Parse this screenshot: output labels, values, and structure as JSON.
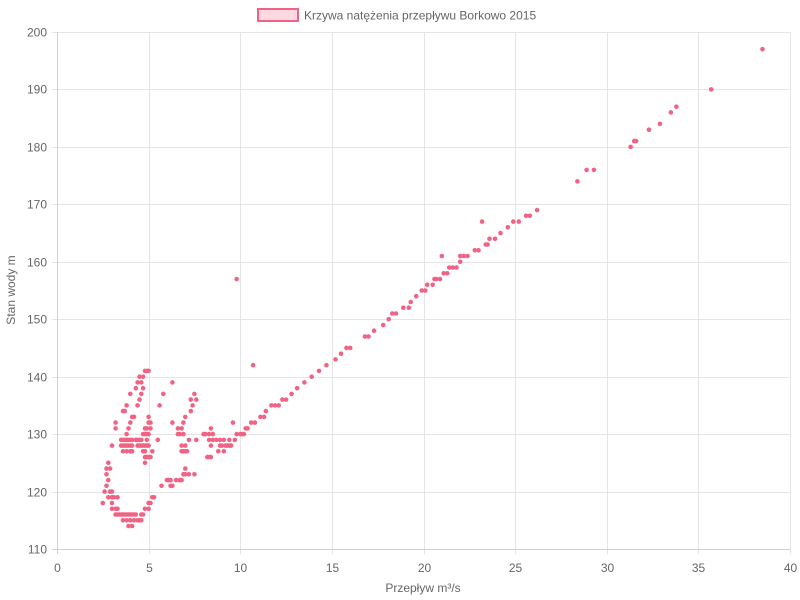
{
  "chart_data": {
    "type": "scatter",
    "legend": {
      "label": "Krzywa natężenia przepływu Borkowo 2015",
      "placement": "top-center"
    },
    "xlabel": "Przepływ m³/s",
    "ylabel": "Stan wody m",
    "xlim": [
      0,
      40
    ],
    "ylim": [
      110,
      200
    ],
    "xticks": [
      0,
      5,
      10,
      15,
      20,
      25,
      30,
      35,
      40
    ],
    "yticks": [
      110,
      120,
      130,
      140,
      150,
      160,
      170,
      180,
      190,
      200
    ],
    "xtick_labels": [
      "0",
      "5",
      "10",
      "15",
      "20",
      "25",
      "30",
      "35",
      "40"
    ],
    "ytick_labels": [
      "110",
      "120",
      "130",
      "140",
      "150",
      "160",
      "170",
      "180",
      "190",
      "200"
    ],
    "grid": true,
    "colors": {
      "point_fill": "#f06384",
      "legend_fill": "#ffd9e1",
      "legend_border": "#f06384"
    },
    "series": [
      {
        "points": [
          [
            2.5,
            118
          ],
          [
            2.6,
            120
          ],
          [
            2.7,
            121
          ],
          [
            2.7,
            123
          ],
          [
            2.7,
            124
          ],
          [
            2.8,
            119
          ],
          [
            2.8,
            122
          ],
          [
            2.8,
            125
          ],
          [
            2.9,
            120
          ],
          [
            2.9,
            124
          ],
          [
            3.0,
            117
          ],
          [
            3.0,
            118
          ],
          [
            3.0,
            119
          ],
          [
            3.0,
            120
          ],
          [
            3.0,
            128
          ],
          [
            3.1,
            119
          ],
          [
            3.2,
            116
          ],
          [
            3.2,
            117
          ],
          [
            3.2,
            131
          ],
          [
            3.2,
            132
          ],
          [
            3.3,
            116
          ],
          [
            3.3,
            117
          ],
          [
            3.3,
            119
          ],
          [
            3.4,
            116
          ],
          [
            3.5,
            116
          ],
          [
            3.5,
            128
          ],
          [
            3.5,
            129
          ],
          [
            3.6,
            115
          ],
          [
            3.6,
            116
          ],
          [
            3.6,
            127
          ],
          [
            3.6,
            128
          ],
          [
            3.6,
            129
          ],
          [
            3.6,
            134
          ],
          [
            3.7,
            116
          ],
          [
            3.7,
            128
          ],
          [
            3.7,
            129
          ],
          [
            3.7,
            134
          ],
          [
            3.8,
            115
          ],
          [
            3.8,
            116
          ],
          [
            3.8,
            127
          ],
          [
            3.8,
            128
          ],
          [
            3.8,
            129
          ],
          [
            3.8,
            130
          ],
          [
            3.8,
            135
          ],
          [
            3.9,
            114
          ],
          [
            3.9,
            116
          ],
          [
            3.9,
            128
          ],
          [
            3.9,
            129
          ],
          [
            3.9,
            131
          ],
          [
            4.0,
            115
          ],
          [
            4.0,
            116
          ],
          [
            4.0,
            127
          ],
          [
            4.0,
            128
          ],
          [
            4.0,
            129
          ],
          [
            4.0,
            132
          ],
          [
            4.0,
            137
          ],
          [
            4.1,
            114
          ],
          [
            4.1,
            116
          ],
          [
            4.1,
            127
          ],
          [
            4.1,
            128
          ],
          [
            4.1,
            129
          ],
          [
            4.1,
            133
          ],
          [
            4.2,
            115
          ],
          [
            4.2,
            116
          ],
          [
            4.2,
            133
          ],
          [
            4.3,
            116
          ],
          [
            4.3,
            129
          ],
          [
            4.3,
            138
          ],
          [
            4.4,
            115
          ],
          [
            4.4,
            128
          ],
          [
            4.4,
            129
          ],
          [
            4.4,
            135
          ],
          [
            4.4,
            139
          ],
          [
            4.5,
            115
          ],
          [
            4.5,
            128
          ],
          [
            4.5,
            129
          ],
          [
            4.5,
            136
          ],
          [
            4.5,
            140
          ],
          [
            4.6,
            115
          ],
          [
            4.6,
            116
          ],
          [
            4.6,
            128
          ],
          [
            4.6,
            129
          ],
          [
            4.6,
            137
          ],
          [
            4.6,
            139
          ],
          [
            4.7,
            116
          ],
          [
            4.7,
            127
          ],
          [
            4.7,
            128
          ],
          [
            4.7,
            130
          ],
          [
            4.7,
            138
          ],
          [
            4.7,
            140
          ],
          [
            4.8,
            117
          ],
          [
            4.8,
            125
          ],
          [
            4.8,
            126
          ],
          [
            4.8,
            127
          ],
          [
            4.8,
            128
          ],
          [
            4.8,
            130
          ],
          [
            4.8,
            131
          ],
          [
            4.8,
            141
          ],
          [
            4.9,
            126
          ],
          [
            4.9,
            128
          ],
          [
            4.9,
            129
          ],
          [
            4.9,
            130
          ],
          [
            4.9,
            131
          ],
          [
            4.9,
            141
          ],
          [
            5.0,
            117
          ],
          [
            5.0,
            118
          ],
          [
            5.0,
            126
          ],
          [
            5.0,
            128
          ],
          [
            5.0,
            130
          ],
          [
            5.0,
            132
          ],
          [
            5.0,
            133
          ],
          [
            5.0,
            141
          ],
          [
            5.1,
            118
          ],
          [
            5.1,
            126
          ],
          [
            5.1,
            131
          ],
          [
            5.1,
            132
          ],
          [
            5.2,
            119
          ],
          [
            5.2,
            127
          ],
          [
            5.3,
            119
          ],
          [
            5.5,
            129
          ],
          [
            5.6,
            135
          ],
          [
            5.7,
            121
          ],
          [
            5.8,
            137
          ],
          [
            6.0,
            122
          ],
          [
            6.1,
            122
          ],
          [
            6.2,
            121
          ],
          [
            6.2,
            122
          ],
          [
            6.3,
            121
          ],
          [
            6.3,
            132
          ],
          [
            6.3,
            139
          ],
          [
            6.5,
            122
          ],
          [
            6.6,
            130
          ],
          [
            6.6,
            131
          ],
          [
            6.7,
            122
          ],
          [
            6.7,
            130
          ],
          [
            6.8,
            122
          ],
          [
            6.8,
            127
          ],
          [
            6.8,
            128
          ],
          [
            6.8,
            131
          ],
          [
            6.9,
            123
          ],
          [
            6.9,
            127
          ],
          [
            6.9,
            130
          ],
          [
            6.9,
            132
          ],
          [
            7.0,
            123
          ],
          [
            7.0,
            124
          ],
          [
            7.0,
            127
          ],
          [
            7.0,
            128
          ],
          [
            7.0,
            133
          ],
          [
            7.1,
            127
          ],
          [
            7.2,
            123
          ],
          [
            7.2,
            129
          ],
          [
            7.3,
            134
          ],
          [
            7.3,
            136
          ],
          [
            7.4,
            135
          ],
          [
            7.5,
            123
          ],
          [
            7.5,
            137
          ],
          [
            7.6,
            129
          ],
          [
            7.6,
            136
          ],
          [
            8.0,
            130
          ],
          [
            8.1,
            130
          ],
          [
            8.2,
            126
          ],
          [
            8.3,
            126
          ],
          [
            8.3,
            129
          ],
          [
            8.3,
            130
          ],
          [
            8.4,
            126
          ],
          [
            8.4,
            128
          ],
          [
            8.4,
            131
          ],
          [
            8.5,
            129
          ],
          [
            8.5,
            130
          ],
          [
            8.7,
            129
          ],
          [
            8.8,
            127
          ],
          [
            8.9,
            128
          ],
          [
            8.9,
            129
          ],
          [
            9.0,
            128
          ],
          [
            9.1,
            127
          ],
          [
            9.1,
            129
          ],
          [
            9.2,
            128
          ],
          [
            9.3,
            128
          ],
          [
            9.4,
            128
          ],
          [
            9.4,
            129
          ],
          [
            9.5,
            128
          ],
          [
            9.6,
            132
          ],
          [
            9.7,
            129
          ],
          [
            9.8,
            157
          ],
          [
            9.8,
            130
          ],
          [
            10.0,
            130
          ],
          [
            10.1,
            130
          ],
          [
            10.2,
            130
          ],
          [
            10.3,
            131
          ],
          [
            10.4,
            131
          ],
          [
            10.6,
            132
          ],
          [
            10.7,
            142
          ],
          [
            10.8,
            132
          ],
          [
            11.1,
            133
          ],
          [
            11.3,
            133
          ],
          [
            11.4,
            134
          ],
          [
            11.7,
            135
          ],
          [
            11.9,
            135
          ],
          [
            12.1,
            135
          ],
          [
            12.3,
            136
          ],
          [
            12.5,
            136
          ],
          [
            12.8,
            137
          ],
          [
            13.1,
            138
          ],
          [
            13.5,
            139
          ],
          [
            13.9,
            140
          ],
          [
            14.3,
            141
          ],
          [
            14.7,
            142
          ],
          [
            15.2,
            143
          ],
          [
            15.5,
            144
          ],
          [
            15.8,
            145
          ],
          [
            16.0,
            145
          ],
          [
            16.8,
            147
          ],
          [
            17.0,
            147
          ],
          [
            17.3,
            148
          ],
          [
            17.8,
            149
          ],
          [
            18.1,
            150
          ],
          [
            18.3,
            151
          ],
          [
            18.5,
            151
          ],
          [
            18.9,
            152
          ],
          [
            19.2,
            152
          ],
          [
            19.3,
            153
          ],
          [
            19.6,
            154
          ],
          [
            19.9,
            155
          ],
          [
            20.1,
            155
          ],
          [
            20.2,
            156
          ],
          [
            20.5,
            156
          ],
          [
            20.6,
            157
          ],
          [
            20.7,
            157
          ],
          [
            20.9,
            157
          ],
          [
            21.0,
            161
          ],
          [
            21.1,
            158
          ],
          [
            21.3,
            158
          ],
          [
            21.4,
            159
          ],
          [
            21.6,
            159
          ],
          [
            21.8,
            159
          ],
          [
            22.0,
            160
          ],
          [
            22.0,
            161
          ],
          [
            22.2,
            161
          ],
          [
            22.4,
            161
          ],
          [
            22.8,
            162
          ],
          [
            23.0,
            162
          ],
          [
            23.2,
            167
          ],
          [
            23.4,
            163
          ],
          [
            23.5,
            163
          ],
          [
            23.6,
            164
          ],
          [
            23.9,
            164
          ],
          [
            24.2,
            165
          ],
          [
            24.6,
            166
          ],
          [
            24.9,
            167
          ],
          [
            25.2,
            167
          ],
          [
            25.6,
            168
          ],
          [
            25.8,
            168
          ],
          [
            26.2,
            169
          ],
          [
            28.4,
            174
          ],
          [
            28.9,
            176
          ],
          [
            29.3,
            176
          ],
          [
            31.3,
            180
          ],
          [
            31.5,
            181
          ],
          [
            31.6,
            181
          ],
          [
            32.3,
            183
          ],
          [
            32.9,
            184
          ],
          [
            33.5,
            186
          ],
          [
            33.8,
            187
          ],
          [
            35.7,
            190
          ],
          [
            38.5,
            197
          ]
        ]
      }
    ]
  }
}
